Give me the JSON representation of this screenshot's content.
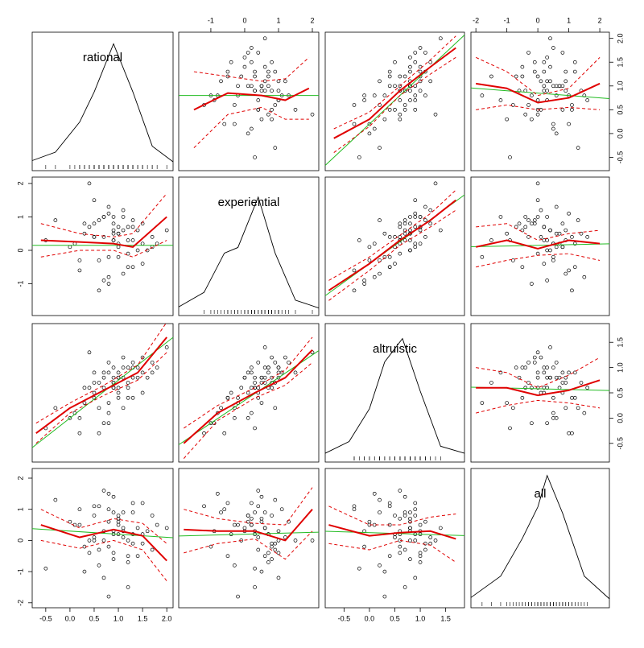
{
  "chart_data": {
    "type": "scatter-matrix",
    "point_color": "#000000",
    "fit_color": "#22bb22",
    "smooth_color": "#e00000",
    "variables": [
      {
        "name": "rational",
        "values": [
          0.9,
          1.2,
          0.5,
          1.5,
          0.7,
          1.0,
          0.3,
          1.3,
          0.8,
          1.7,
          0.0,
          1.1,
          0.6,
          0.9,
          1.4,
          -0.3,
          0.8,
          1.0,
          0.5,
          1.2,
          1.8,
          0.2,
          0.9,
          1.1,
          0.7,
          1.5,
          0.4,
          1.0,
          1.3,
          0.6,
          2.0,
          -0.5,
          0.8,
          1.2,
          0.9,
          0.3,
          1.6,
          0.7,
          1.0,
          1.1,
          0.5,
          1.4,
          0.8,
          0.2,
          1.2,
          0.9,
          1.3,
          0.6,
          1.0,
          0.4,
          1.7,
          0.8,
          1.1,
          0.5,
          1.5,
          0.7,
          0.9,
          1.3,
          0.1,
          1.0
        ],
        "lim": [
          -0.78,
          2.13
        ],
        "ticks": [
          -0.5,
          {
            "value": 0,
            "label": "0.0"
          },
          0.5,
          {
            "value": 1,
            "label": "1.0"
          },
          1.5,
          {
            "value": 2,
            "label": "2.0"
          }
        ],
        "density": {
          "x": [
            -0.78,
            -0.3,
            0.2,
            0.5,
            0.9,
            1.3,
            1.7,
            2.13
          ],
          "y": [
            0.03,
            0.1,
            0.35,
            0.6,
            1.0,
            0.6,
            0.15,
            0.02
          ],
          "ylim": [
            0,
            1.07
          ]
        }
      },
      {
        "name": "experiential",
        "values": [
          0.3,
          -0.5,
          0.8,
          0.2,
          1.0,
          -0.2,
          0.5,
          0.7,
          -0.8,
          0.4,
          0.1,
          1.2,
          -0.3,
          0.6,
          0.0,
          0.9,
          -1.0,
          0.5,
          1.5,
          0.3,
          0.2,
          -0.6,
          0.8,
          1.0,
          0.4,
          -0.4,
          0.7,
          0.1,
          0.9,
          -1.2,
          0.6,
          0.3,
          1.3,
          -0.1,
          0.5,
          0.8,
          0.0,
          1.0,
          0.2,
          -0.7,
          0.4,
          0.6,
          1.1,
          -0.3,
          0.7,
          0.3,
          -0.5,
          0.9,
          0.5,
          2.0,
          0.1,
          -0.2,
          0.6,
          0.4,
          0.8,
          -0.9,
          1.0,
          0.3,
          0.2,
          0.7
        ],
        "lim": [
          -1.95,
          2.19
        ],
        "ticks": [
          -1,
          0,
          1,
          2
        ],
        "density": {
          "x": [
            -1.95,
            -1.2,
            -0.6,
            -0.2,
            0.4,
            0.9,
            1.5,
            2.19
          ],
          "y": [
            0.02,
            0.15,
            0.5,
            0.55,
            1.0,
            0.5,
            0.08,
            0.01
          ],
          "ylim": [
            0,
            1.15
          ]
        }
      },
      {
        "name": "altruistic",
        "values": [
          0.6,
          0.4,
          0.7,
          0.9,
          0.8,
          0.4,
          0.3,
          1.0,
          0.1,
          1.1,
          0.0,
          1.2,
          0.2,
          0.7,
          0.8,
          0.2,
          -0.1,
          0.8,
          0.9,
          0.7,
          1.0,
          -0.3,
          0.8,
          1.0,
          0.6,
          0.5,
          0.6,
          0.5,
          1.1,
          -0.3,
          1.4,
          -0.2,
          1.1,
          0.6,
          0.7,
          0.6,
          0.8,
          0.9,
          0.6,
          0.2,
          0.5,
          1.0,
          0.9,
          0.0,
          1.0,
          0.6,
          0.4,
          0.7,
          0.8,
          1.3,
          0.9,
          0.3,
          0.8,
          0.4,
          1.2,
          -0.1,
          1.0,
          0.8,
          0.1,
          0.9
        ],
        "lim": [
          -0.87,
          1.87
        ],
        "ticks": [
          -0.5,
          {
            "value": 0,
            "label": "0.0"
          },
          0.5,
          {
            "value": 1,
            "label": "1.0"
          },
          1.5
        ],
        "density": {
          "x": [
            -0.87,
            -0.4,
            0,
            0.3,
            0.65,
            1.0,
            1.4,
            1.87
          ],
          "y": [
            0.02,
            0.12,
            0.4,
            0.8,
            1.0,
            0.55,
            0.08,
            0.02
          ],
          "ylim": [
            0,
            1.1
          ]
        }
      },
      {
        "name": "all",
        "values": [
          0.3,
          -0.5,
          0.8,
          1.2,
          0.0,
          0.5,
          -1.0,
          0.2,
          1.5,
          -0.3,
          0.6,
          0.1,
          -0.8,
          0.9,
          0.4,
          1.3,
          -0.2,
          0.7,
          0.0,
          -1.5,
          0.5,
          1.0,
          -0.6,
          0.3,
          1.6,
          0.2,
          -0.4,
          0.8,
          -0.1,
          1.1,
          0.4,
          -0.9,
          0.6,
          0.0,
          1.4,
          -0.2,
          0.3,
          -1.2,
          0.7,
          0.9,
          0.1,
          -0.5,
          1.0,
          0.5,
          -0.7,
          0.2,
          1.2,
          -0.3,
          0.6,
          0.0,
          0.8,
          -1.8,
          0.4,
          1.1,
          -0.1,
          0.3,
          -0.4,
          0.9,
          0.5,
          0.2
        ],
        "lim": [
          -2.16,
          2.31
        ],
        "ticks": [
          -2,
          -1,
          0,
          1,
          2
        ],
        "density": {
          "x": [
            -2.16,
            -1.2,
            -0.5,
            0,
            0.3,
            0.8,
            1.5,
            2.31
          ],
          "y": [
            0.03,
            0.2,
            0.5,
            0.75,
            1.0,
            0.7,
            0.2,
            0.02
          ],
          "ylim": [
            0,
            1.03
          ]
        }
      }
    ],
    "panels": [
      {
        "row": 0,
        "col": 1,
        "fit": [
          0.8,
          0
        ],
        "smooth_x": [
          -1.5,
          -0.5,
          0.5,
          1.2,
          1.9
        ],
        "smooth": [
          0.5,
          0.85,
          0.8,
          0.7,
          0.95
        ],
        "upper": [
          1.3,
          1.2,
          1.1,
          1.15,
          1.6
        ],
        "lower": [
          -0.3,
          0.4,
          0.55,
          0.3,
          0.3
        ]
      },
      {
        "row": 0,
        "col": 2,
        "fit": [
          0.2,
          1.0
        ],
        "smooth_x": [
          -0.7,
          0,
          0.6,
          1.2,
          1.7
        ],
        "smooth": [
          -0.1,
          0.3,
          0.9,
          1.4,
          1.8
        ],
        "upper": [
          0.1,
          0.45,
          1.0,
          1.55,
          2.05
        ],
        "lower": [
          -0.4,
          0.15,
          0.8,
          1.25,
          1.6
        ]
      },
      {
        "row": 0,
        "col": 3,
        "fit": [
          0.85,
          -0.05
        ],
        "smooth_x": [
          -2,
          -1,
          0,
          1,
          2
        ],
        "smooth": [
          1.05,
          0.95,
          0.65,
          0.75,
          1.05
        ],
        "upper": [
          1.6,
          1.3,
          0.8,
          0.95,
          1.6
        ],
        "lower": [
          0.5,
          0.6,
          0.5,
          0.55,
          0.5
        ]
      },
      {
        "row": 1,
        "col": 0,
        "fit": [
          0.15,
          0
        ],
        "smooth_x": [
          -0.6,
          0.2,
          0.9,
          1.3,
          2.0
        ],
        "smooth": [
          0.3,
          0.25,
          0.2,
          0.1,
          1.0
        ],
        "upper": [
          0.8,
          0.5,
          0.4,
          0.5,
          1.7
        ],
        "lower": [
          -0.2,
          0,
          0,
          -0.2,
          0.3
        ]
      },
      {
        "row": 1,
        "col": 2,
        "fit": [
          -0.4,
          1.1
        ],
        "smooth_x": [
          -0.8,
          0,
          0.6,
          1.2,
          1.7
        ],
        "smooth": [
          -1.2,
          -0.4,
          0.3,
          0.9,
          1.5
        ],
        "upper": [
          -0.9,
          -0.2,
          0.45,
          1.1,
          1.8
        ],
        "lower": [
          -1.5,
          -0.6,
          0.15,
          0.7,
          1.2
        ]
      },
      {
        "row": 1,
        "col": 3,
        "fit": [
          0.15,
          0.02
        ],
        "smooth_x": [
          -2,
          -1,
          0,
          1,
          2
        ],
        "smooth": [
          0.1,
          0.3,
          0.05,
          0.3,
          0.2
        ],
        "upper": [
          0.7,
          0.8,
          0.3,
          0.5,
          0.6
        ],
        "lower": [
          -0.5,
          -0.3,
          -0.15,
          -0.1,
          -0.3
        ]
      },
      {
        "row": 2,
        "col": 0,
        "fit": [
          0.0,
          0.75
        ],
        "smooth_x": [
          -0.7,
          0,
          0.7,
          1.4,
          2.0
        ],
        "smooth": [
          -0.3,
          0.2,
          0.55,
          0.9,
          1.6
        ],
        "upper": [
          -0.1,
          0.3,
          0.65,
          1.05,
          1.9
        ],
        "lower": [
          -0.5,
          0.1,
          0.45,
          0.75,
          1.3
        ]
      },
      {
        "row": 2,
        "col": 1,
        "fit": [
          0.35,
          0.45
        ],
        "smooth_x": [
          -1.8,
          -0.8,
          0.3,
          1.2,
          2.0
        ],
        "smooth": [
          -0.5,
          0.1,
          0.5,
          0.8,
          1.35
        ],
        "upper": [
          -0.2,
          0.25,
          0.6,
          0.95,
          1.6
        ],
        "lower": [
          -0.8,
          -0.05,
          0.4,
          0.65,
          1.1
        ]
      },
      {
        "row": 2,
        "col": 3,
        "fit": [
          0.58,
          -0.015
        ],
        "smooth_x": [
          -2,
          -1,
          0,
          1,
          2
        ],
        "smooth": [
          0.6,
          0.6,
          0.45,
          0.55,
          0.75
        ],
        "upper": [
          1.0,
          0.9,
          0.6,
          0.85,
          1.2
        ],
        "lower": [
          0.1,
          0.25,
          0.35,
          0.3,
          0.2
        ]
      },
      {
        "row": 3,
        "col": 0,
        "fit": [
          0.3,
          -0.1
        ],
        "smooth_x": [
          -0.6,
          0.2,
          0.9,
          1.5,
          2.0
        ],
        "smooth": [
          0.5,
          0.1,
          0.35,
          0.15,
          -0.65
        ],
        "upper": [
          1.0,
          0.4,
          0.7,
          0.55,
          -0.1
        ],
        "lower": [
          0.0,
          -0.25,
          0.0,
          -0.3,
          -1.3
        ]
      },
      {
        "row": 3,
        "col": 1,
        "fit": [
          0.2,
          0.03
        ],
        "smooth_x": [
          -1.8,
          -0.8,
          0.3,
          1.2,
          2.0
        ],
        "smooth": [
          0.35,
          0.3,
          0.3,
          0.0,
          1.0
        ],
        "upper": [
          1.0,
          0.7,
          0.55,
          0.5,
          1.7
        ],
        "lower": [
          -0.4,
          -0.1,
          0.05,
          -0.6,
          0.3
        ]
      },
      {
        "row": 3,
        "col": 2,
        "fit": [
          0.25,
          -0.05
        ],
        "smooth_x": [
          -0.8,
          0,
          0.6,
          1.2,
          1.7
        ],
        "smooth": [
          0.5,
          0.15,
          0.25,
          0.3,
          0.05
        ],
        "upper": [
          1.1,
          0.5,
          0.5,
          0.75,
          0.85
        ],
        "lower": [
          -0.1,
          -0.3,
          0.0,
          -0.15,
          -0.7
        ]
      }
    ]
  }
}
